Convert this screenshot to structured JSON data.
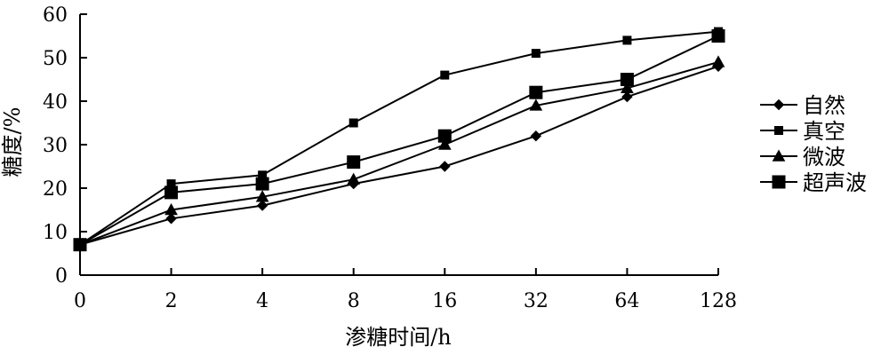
{
  "chart_data": {
    "type": "line",
    "title": "",
    "xlabel": "渗糖时间/h",
    "ylabel": "糖度/%",
    "categories": [
      "0",
      "2",
      "4",
      "8",
      "16",
      "32",
      "64",
      "128"
    ],
    "ylim": [
      0,
      60
    ],
    "yticks": [
      "0",
      "10",
      "20",
      "30",
      "40",
      "50",
      "60"
    ],
    "grid": false,
    "legend_position": "right",
    "series": [
      {
        "name": "自然",
        "marker": "diamond",
        "color": "#000000",
        "values": [
          7,
          13,
          16,
          21,
          25,
          32,
          41,
          48
        ]
      },
      {
        "name": "真空",
        "marker": "square-small",
        "color": "#000000",
        "values": [
          7,
          21,
          23,
          35,
          46,
          51,
          54,
          56
        ]
      },
      {
        "name": "微波",
        "marker": "triangle",
        "color": "#000000",
        "values": [
          7,
          15,
          18,
          22,
          30,
          39,
          43,
          49
        ]
      },
      {
        "name": "超声波",
        "marker": "square-large",
        "color": "#000000",
        "values": [
          7,
          19,
          21,
          26,
          32,
          42,
          45,
          55
        ]
      }
    ]
  }
}
